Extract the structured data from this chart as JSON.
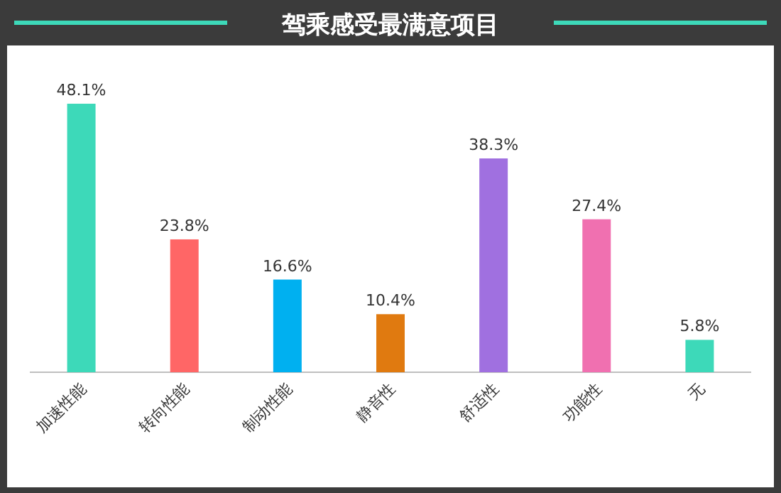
{
  "chart_data": {
    "type": "bar",
    "title": "驾乘感受最满意项目",
    "categories": [
      "加速性能",
      "转向性能",
      "制动性能",
      "静音性",
      "舒适性",
      "功能性",
      "无"
    ],
    "values": [
      48.1,
      23.8,
      16.6,
      10.4,
      38.3,
      27.4,
      5.8
    ],
    "colors": [
      "#3dd9b9",
      "#ff6666",
      "#00b0f0",
      "#e07a10",
      "#a070e0",
      "#f070b0",
      "#3dd9b9"
    ],
    "value_labels": [
      "48.1%",
      "23.8%",
      "16.6%",
      "10.4%",
      "38.3%",
      "27.4%",
      "5.8%"
    ]
  }
}
